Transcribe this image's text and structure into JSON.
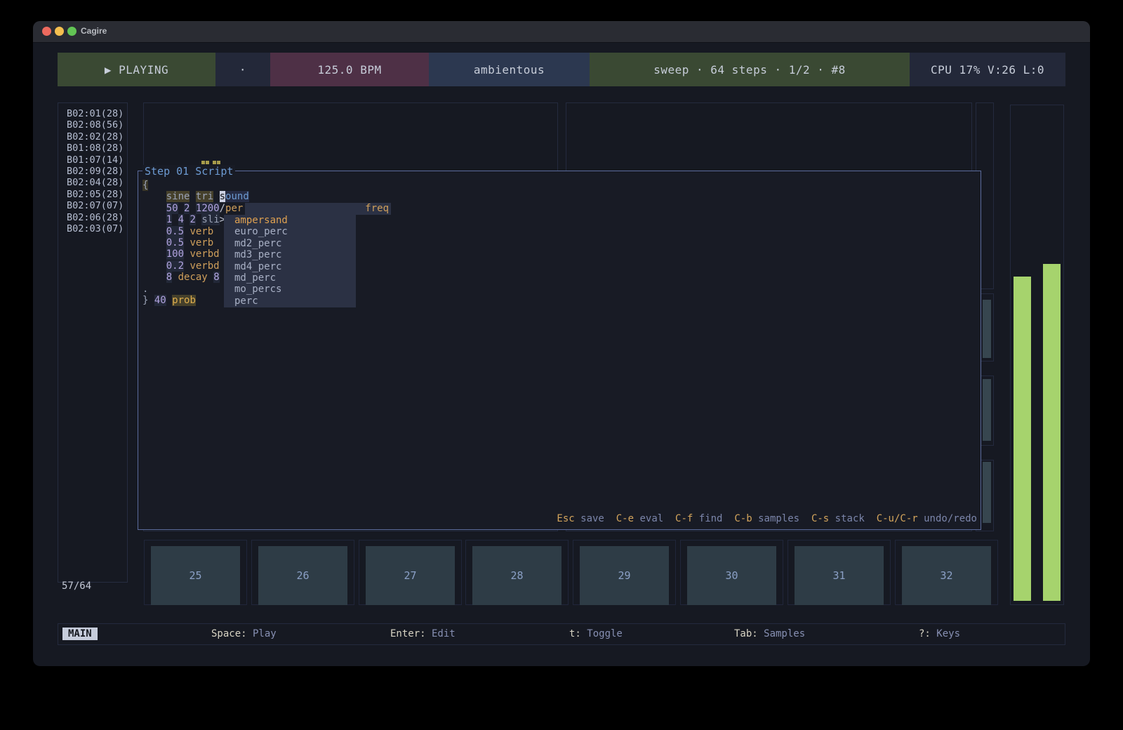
{
  "window": {
    "title": "Cagire"
  },
  "topbar": {
    "segments": [
      {
        "label": "▶ PLAYING",
        "style": "green"
      },
      {
        "label": "·",
        "style": "navy"
      },
      {
        "label": "125.0 BPM",
        "style": "maroon"
      },
      {
        "label": "ambientous",
        "style": "blue"
      },
      {
        "label": "sweep · 64 steps · 1/2 · #8",
        "style": "green"
      },
      {
        "label": "CPU 17%  V:26  L:0",
        "style": "navy"
      }
    ]
  },
  "sidebar": {
    "items": [
      "B02:01(28)",
      "B02:08(56)",
      "B02:02(28)",
      "B01:08(28)",
      "B01:07(14)",
      "B02:09(28)",
      "B02:04(28)",
      "B02:05(28)",
      "B02:07(07)",
      "B02:06(28)",
      "B02:03(07)"
    ],
    "counter": "57/64"
  },
  "editor": {
    "title": "Step 01 Script",
    "lines": [
      [
        [
          "{",
          "brc"
        ]
      ],
      [
        [
          "    ",
          ""
        ],
        [
          "sine",
          "olv"
        ],
        [
          " ",
          ""
        ],
        [
          "tri",
          "olv"
        ],
        [
          " ",
          ""
        ],
        [
          "s",
          "cur"
        ],
        [
          "ound",
          "bluhl"
        ]
      ],
      [
        [
          "    ",
          ""
        ],
        [
          "50",
          "num"
        ],
        [
          " ",
          ""
        ],
        [
          "2",
          "num"
        ],
        [
          " ",
          ""
        ],
        [
          "1200",
          "num"
        ],
        [
          "/",
          "op"
        ],
        [
          "per",
          "kw"
        ]
      ],
      [
        [
          "    ",
          ""
        ],
        [
          "1",
          "num"
        ],
        [
          " ",
          ""
        ],
        [
          "4",
          "num"
        ],
        [
          " ",
          ""
        ],
        [
          "2",
          "num"
        ],
        [
          " ",
          ""
        ],
        [
          "sli",
          "gryhl"
        ],
        [
          ">",
          "op"
        ]
      ],
      [
        [
          "    ",
          ""
        ],
        [
          "0.5",
          "num"
        ],
        [
          " ",
          ""
        ],
        [
          "verb",
          "kw"
        ]
      ],
      [
        [
          "    ",
          ""
        ],
        [
          "0.5",
          "num"
        ],
        [
          " ",
          ""
        ],
        [
          "verb",
          "kw"
        ]
      ],
      [
        [
          "    ",
          ""
        ],
        [
          "100",
          "num"
        ],
        [
          " ",
          ""
        ],
        [
          "verbd",
          "kw"
        ]
      ],
      [
        [
          "    ",
          ""
        ],
        [
          "0.2",
          "num"
        ],
        [
          " ",
          ""
        ],
        [
          "verbd",
          "kw"
        ]
      ],
      [
        [
          "    ",
          ""
        ],
        [
          "8",
          "num"
        ],
        [
          " ",
          ""
        ],
        [
          "decay",
          "kw"
        ],
        [
          " ",
          ""
        ],
        [
          "8",
          "num"
        ]
      ],
      [
        [
          ".",
          "gry"
        ]
      ],
      [
        [
          "}",
          "gry"
        ],
        [
          " ",
          ""
        ],
        [
          "40",
          "num"
        ],
        [
          " ",
          ""
        ],
        [
          "prob",
          "kwhl"
        ]
      ]
    ],
    "hotkeys": [
      {
        "key": "Esc",
        "label": "save"
      },
      {
        "key": "C-e",
        "label": "eval"
      },
      {
        "key": "C-f",
        "label": "find"
      },
      {
        "key": "C-b",
        "label": "samples"
      },
      {
        "key": "C-s",
        "label": "stack"
      },
      {
        "key": "C-u/C-r",
        "label": "undo/redo"
      }
    ]
  },
  "dropdown": {
    "hint": "freq",
    "items": [
      "ampersand",
      "euro_perc",
      "md2_perc",
      "md3_perc",
      "md4_perc",
      "md_perc",
      "mo_percs",
      "perc"
    ],
    "selected_index": 0
  },
  "steps": [
    "25",
    "26",
    "27",
    "28",
    "29",
    "30",
    "31",
    "32"
  ],
  "statusbar": {
    "mode": "MAIN",
    "hints": [
      {
        "key": "Space",
        "label": "Play"
      },
      {
        "key": "Enter",
        "label": "Edit"
      },
      {
        "key": "t",
        "label": "Toggle"
      },
      {
        "key": "Tab",
        "label": "Samples"
      },
      {
        "key": "?",
        "label": "Keys"
      }
    ]
  },
  "colors": {
    "editor_border": "#5b6b9c",
    "segment_green": "#3a4933",
    "segment_maroon": "#4e3046",
    "segment_blue": "#2c3850",
    "segment_navy": "#232839",
    "meter_green": "#a6d36d",
    "wave_orange": "#e6b567",
    "wave_pink": "#e0798e",
    "keyword_orange": "#cf9f5b",
    "number_purple": "#b2a4e0",
    "code_blue": "#6d9bd3"
  }
}
